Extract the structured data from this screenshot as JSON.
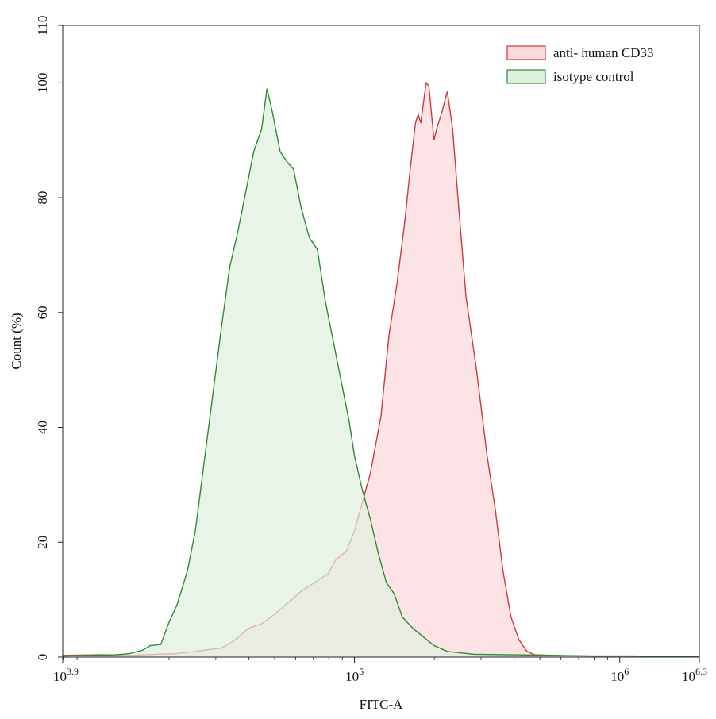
{
  "chart_data": {
    "type": "area",
    "xlabel": "FITC-A",
    "ylabel": "Count  (%)",
    "x_scale": "log10",
    "xlim": [
      3.9,
      6.3
    ],
    "ylim": [
      0,
      110
    ],
    "grid": false,
    "legend_position": "top-right",
    "y_ticks": [
      0,
      20,
      40,
      60,
      80,
      100,
      110
    ],
    "x_ticks": [
      {
        "exp": 3.9,
        "base": "10",
        "sup": "3.9"
      },
      {
        "exp": 5,
        "base": "10",
        "sup": "5"
      },
      {
        "exp": 6,
        "base": "10",
        "sup": "6"
      },
      {
        "exp": 6.3,
        "base": "10",
        "sup": "6.3"
      }
    ],
    "series": [
      {
        "name": "anti- human CD33",
        "stroke": "#cc3a3a",
        "fill": "#fbd9dc",
        "points": [
          [
            3.9,
            0.3
          ],
          [
            4.05,
            0.4
          ],
          [
            4.15,
            0.3
          ],
          [
            4.25,
            0.5
          ],
          [
            4.32,
            0.6
          ],
          [
            4.4,
            1.0
          ],
          [
            4.5,
            1.6
          ],
          [
            4.55,
            3.0
          ],
          [
            4.6,
            5.0
          ],
          [
            4.65,
            5.8
          ],
          [
            4.7,
            7.5
          ],
          [
            4.75,
            9.5
          ],
          [
            4.8,
            11.5
          ],
          [
            4.85,
            13.0
          ],
          [
            4.9,
            14.5
          ],
          [
            4.93,
            17.0
          ],
          [
            4.97,
            18.5
          ],
          [
            5.0,
            22.0
          ],
          [
            5.03,
            27.0
          ],
          [
            5.06,
            32.0
          ],
          [
            5.1,
            42.0
          ],
          [
            5.13,
            56.0
          ],
          [
            5.16,
            65.0
          ],
          [
            5.19,
            76.0
          ],
          [
            5.21,
            85.0
          ],
          [
            5.23,
            93.0
          ],
          [
            5.24,
            94.5
          ],
          [
            5.25,
            93.0
          ],
          [
            5.27,
            100.0
          ],
          [
            5.28,
            99.5
          ],
          [
            5.3,
            90.0
          ],
          [
            5.31,
            92.0
          ],
          [
            5.33,
            95.0
          ],
          [
            5.35,
            98.5
          ],
          [
            5.37,
            92.0
          ],
          [
            5.39,
            80.0
          ],
          [
            5.42,
            63.0
          ],
          [
            5.46,
            50.0
          ],
          [
            5.5,
            35.0
          ],
          [
            5.53,
            26.0
          ],
          [
            5.56,
            15.0
          ],
          [
            5.59,
            7.0
          ],
          [
            5.62,
            3.0
          ],
          [
            5.65,
            1.0
          ],
          [
            5.68,
            0.4
          ],
          [
            5.75,
            0.3
          ],
          [
            5.85,
            0.2
          ],
          [
            6.0,
            0.1
          ],
          [
            6.15,
            0.1
          ],
          [
            6.3,
            0.1
          ]
        ]
      },
      {
        "name": "isotype control",
        "stroke": "#2e8b2e",
        "fill": "#dff0df",
        "points": [
          [
            3.9,
            0.2
          ],
          [
            4.0,
            0.3
          ],
          [
            4.1,
            0.4
          ],
          [
            4.15,
            0.6
          ],
          [
            4.2,
            1.2
          ],
          [
            4.23,
            2.0
          ],
          [
            4.27,
            2.2
          ],
          [
            4.3,
            6.0
          ],
          [
            4.33,
            9.0
          ],
          [
            4.37,
            15.0
          ],
          [
            4.4,
            22.0
          ],
          [
            4.45,
            40.0
          ],
          [
            4.5,
            58.0
          ],
          [
            4.53,
            68.0
          ],
          [
            4.56,
            74.0
          ],
          [
            4.59,
            81.0
          ],
          [
            4.62,
            88.0
          ],
          [
            4.65,
            92.0
          ],
          [
            4.67,
            99.0
          ],
          [
            4.69,
            95.0
          ],
          [
            4.72,
            88.0
          ],
          [
            4.75,
            86.0
          ],
          [
            4.77,
            85.0
          ],
          [
            4.8,
            78.0
          ],
          [
            4.83,
            73.0
          ],
          [
            4.86,
            71.0
          ],
          [
            4.89,
            62.0
          ],
          [
            4.92,
            55.0
          ],
          [
            4.95,
            48.0
          ],
          [
            4.98,
            41.0
          ],
          [
            5.0,
            35.0
          ],
          [
            5.03,
            29.0
          ],
          [
            5.06,
            24.0
          ],
          [
            5.09,
            18.0
          ],
          [
            5.12,
            13.0
          ],
          [
            5.15,
            11.0
          ],
          [
            5.18,
            7.0
          ],
          [
            5.22,
            5.0
          ],
          [
            5.26,
            3.5
          ],
          [
            5.3,
            2.0
          ],
          [
            5.35,
            1.0
          ],
          [
            5.45,
            0.5
          ],
          [
            5.6,
            0.4
          ],
          [
            5.75,
            0.3
          ],
          [
            5.9,
            0.2
          ],
          [
            6.05,
            0.2
          ],
          [
            6.2,
            0.1
          ],
          [
            6.3,
            0.1
          ]
        ]
      }
    ]
  }
}
